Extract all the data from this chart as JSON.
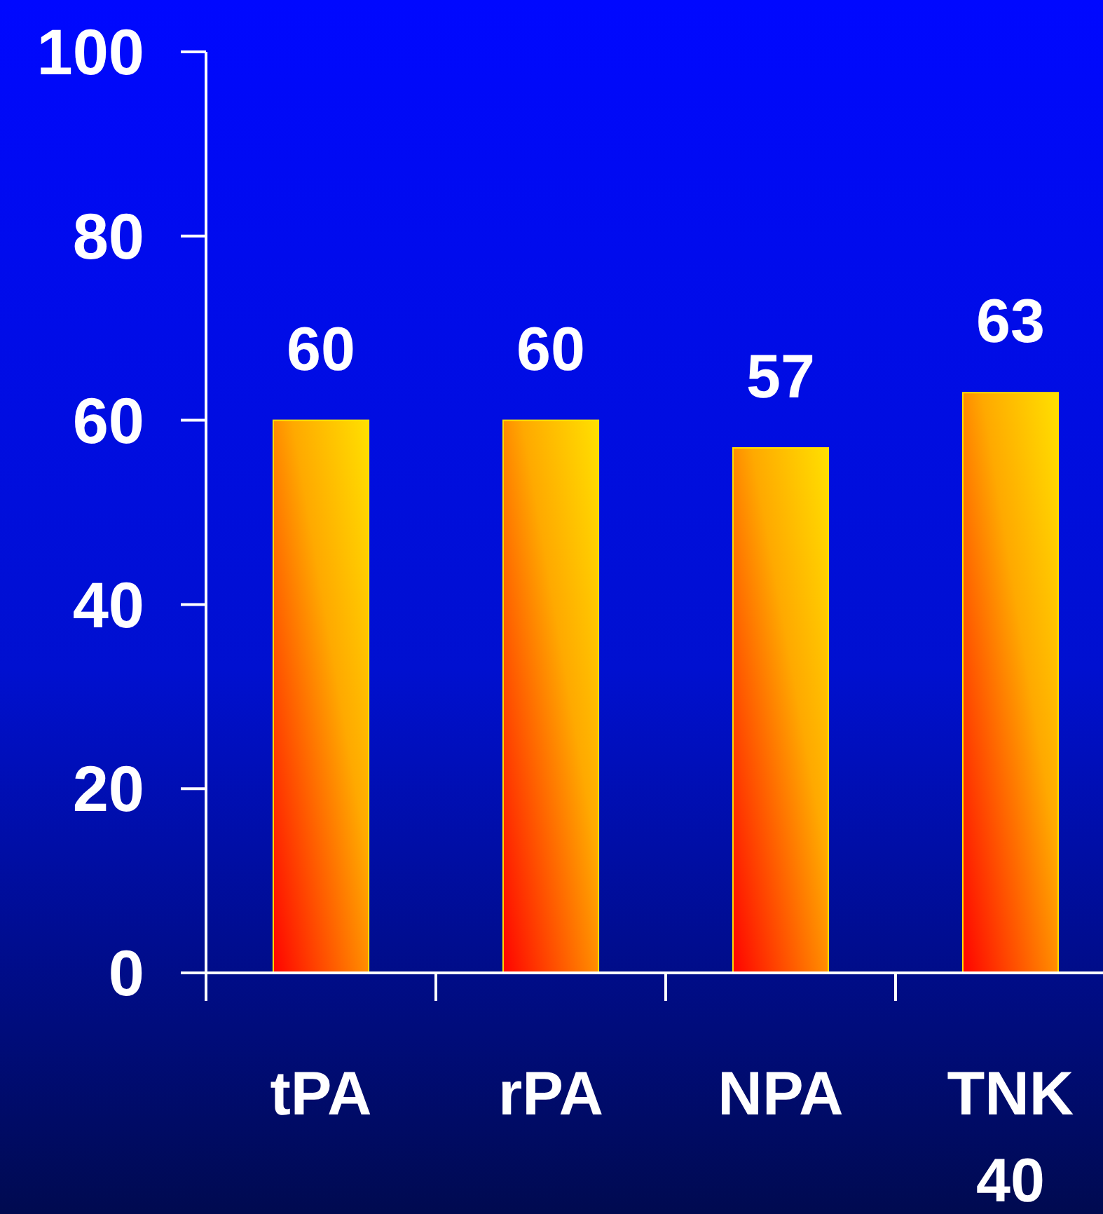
{
  "chart_data": {
    "type": "bar",
    "categories": [
      "tPA",
      "rPA",
      "NPA",
      "TNK 40"
    ],
    "values": [
      60,
      60,
      57,
      63
    ],
    "color": "#ffe000",
    "ylim": [
      0,
      100
    ],
    "yticks": [
      0,
      20,
      40,
      60,
      80,
      100
    ],
    "data_labels": true
  }
}
